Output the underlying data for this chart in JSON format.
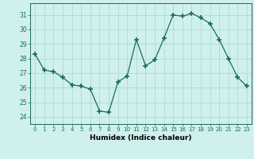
{
  "x": [
    0,
    1,
    2,
    3,
    4,
    5,
    6,
    7,
    8,
    9,
    10,
    11,
    12,
    13,
    14,
    15,
    16,
    17,
    18,
    19,
    20,
    21,
    22,
    23
  ],
  "y": [
    28.3,
    27.2,
    27.1,
    26.7,
    26.2,
    26.1,
    25.9,
    24.4,
    24.3,
    26.4,
    26.8,
    29.3,
    27.5,
    27.9,
    29.4,
    31.0,
    30.9,
    31.1,
    30.8,
    30.4,
    29.3,
    28.0,
    26.7,
    26.1
  ],
  "line_color": "#1a6b5a",
  "marker": "+",
  "markersize": 4,
  "bg_color": "#cff0ec",
  "grid_color": "#aadbd5",
  "xlabel": "Humidex (Indice chaleur)",
  "ylabel_ticks": [
    24,
    25,
    26,
    27,
    28,
    29,
    30,
    31
  ],
  "xlim": [
    -0.5,
    23.5
  ],
  "ylim": [
    23.5,
    31.8
  ],
  "linewidth": 0.9
}
